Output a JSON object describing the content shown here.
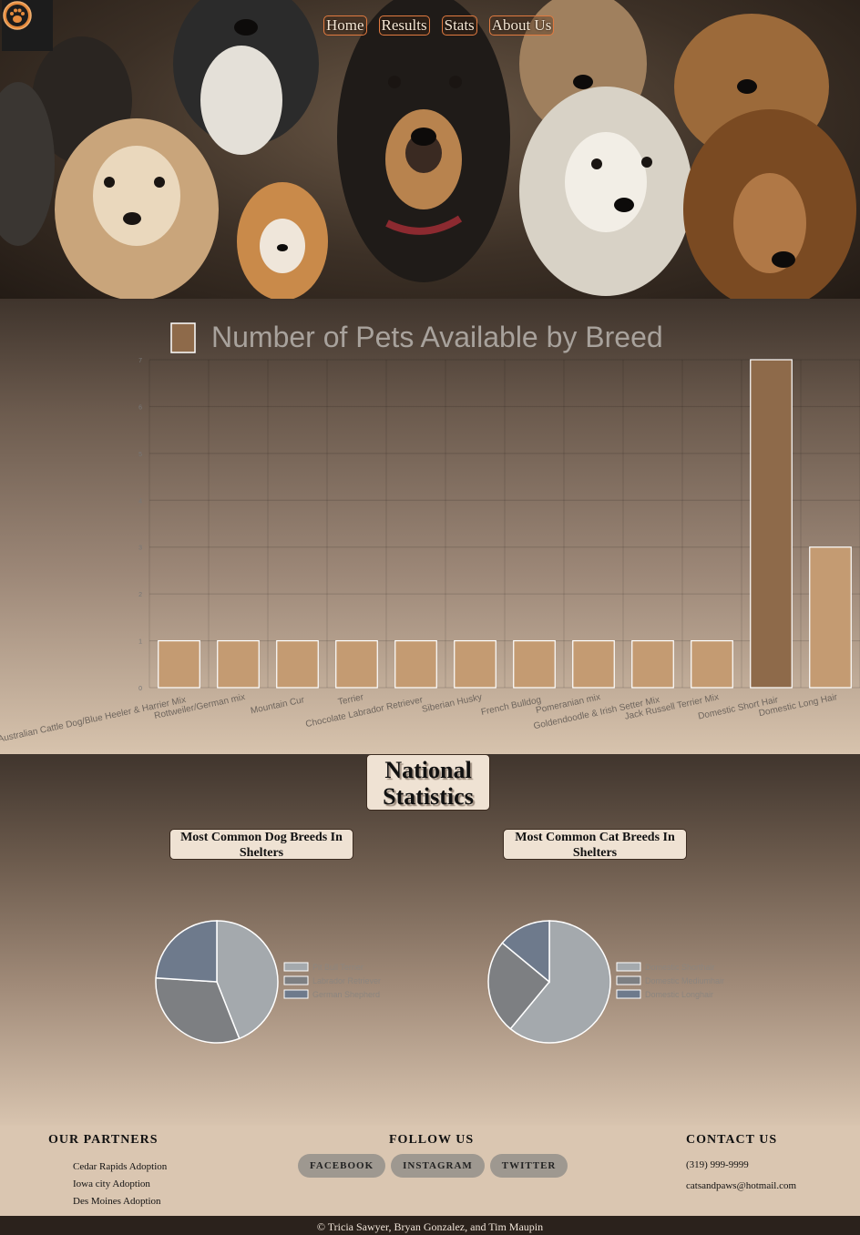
{
  "nav": {
    "items": [
      "Home",
      "Results",
      "Stats",
      "About Us"
    ],
    "logo_icon": "paw-icon"
  },
  "chart_data": {
    "type": "bar",
    "title": "Number of Pets Available by Breed",
    "categories": [
      "Australian Cattle Dog/Blue Heeler & Harrier Mix",
      "Rottweiler/German mix",
      "Mountain Cur",
      "Terrier",
      "Chocolate Labrador Retriever",
      "Siberian Husky",
      "French Bulldog",
      "Pomeranian mix",
      "Goldendoodle & Irish Setter Mix",
      "Jack Russell Terrier Mix",
      "Domestic Short Hair",
      "Domestic Long Hair"
    ],
    "values": [
      1,
      1,
      1,
      1,
      1,
      1,
      1,
      1,
      1,
      1,
      7,
      3
    ],
    "y_ticks": [
      "0",
      "1",
      "2",
      "3",
      "4",
      "5",
      "6",
      "7"
    ],
    "ylim": [
      0,
      7
    ],
    "grid": true,
    "legend": "top",
    "colors": {
      "bar": "#c49b72",
      "bar_highlight": "#8e6a4a",
      "bar_border": "#ffffff",
      "legend_swatch": "#8e6a4a"
    }
  },
  "stats": {
    "title_line1": "National",
    "title_line2": "Statistics",
    "dog_title": "Most Common Dog Breeds In Shelters",
    "cat_title": "Most Common Cat Breeds In Shelters",
    "dog_pie": {
      "type": "pie",
      "labels": [
        "Pit Bull Terrier",
        "Labrador Retriever",
        "German Shepherd"
      ],
      "values": [
        44,
        32,
        24
      ],
      "colors": [
        "#a4a9ad",
        "#7d7f82",
        "#6e7a8c"
      ]
    },
    "cat_pie": {
      "type": "pie",
      "labels": [
        "Domestic Shorthair",
        "Domestic Mediumhair",
        "Domestic Longhair"
      ],
      "values": [
        61,
        25,
        14
      ],
      "colors": [
        "#a4a9ad",
        "#7d7f82",
        "#6e7a8c"
      ]
    }
  },
  "footer": {
    "partners_title": "OUR PARTNERS",
    "partners": [
      "Cedar Rapids Adoption",
      "Iowa city Adoption",
      "Des Moines Adoption"
    ],
    "follow_title": "FOLLOW US",
    "social": [
      "FACEBOOK",
      "INSTAGRAM",
      "TWITTER"
    ],
    "contact_title": "CONTACT US",
    "phone": "(319) 999-9999",
    "email": "catsandpaws@hotmail.com",
    "copyright": "© Tricia Sawyer, Bryan Gonzalez, and Tim Maupin"
  }
}
